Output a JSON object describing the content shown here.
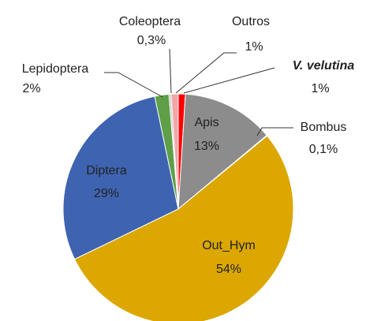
{
  "chart_data": {
    "type": "pie",
    "categories": [
      "V. velutina",
      "Apis",
      "Bombus",
      "Out_Hym",
      "Diptera",
      "Lepidoptera",
      "Coleoptera",
      "Outros"
    ],
    "values": [
      1,
      13,
      0.1,
      54,
      29,
      2,
      0.3,
      1
    ],
    "value_labels": [
      "1%",
      "13%",
      "0,1%",
      "54%",
      "29%",
      "2%",
      "0,3%",
      "1%"
    ],
    "colors": [
      "#ff0000",
      "#8c8c8c",
      "#6e6e6e",
      "#dba700",
      "#3e63b0",
      "#5e9f48",
      "#c8c8c8",
      "#f2a7a7"
    ]
  }
}
